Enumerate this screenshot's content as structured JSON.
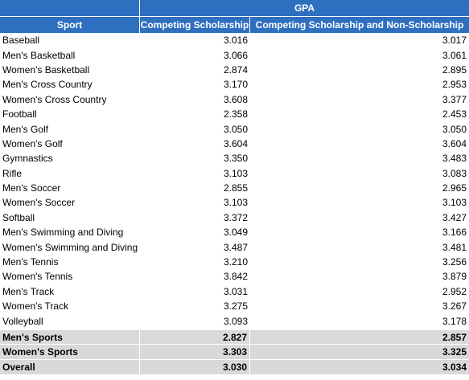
{
  "header": {
    "group_label": "GPA",
    "sport_label": "Sport",
    "competing_label": "Competing Scholarship",
    "combined_label": "Competing Scholarship and Non-Scholarship"
  },
  "rows": [
    {
      "sport": "Baseball",
      "competing": "3.016",
      "combined": "3.017"
    },
    {
      "sport": "Men's Basketball",
      "competing": "3.066",
      "combined": "3.061"
    },
    {
      "sport": "Women's Basketball",
      "competing": "2.874",
      "combined": "2.895"
    },
    {
      "sport": "Men's Cross Country",
      "competing": "3.170",
      "combined": "2.953"
    },
    {
      "sport": "Women's Cross Country",
      "competing": "3.608",
      "combined": "3.377"
    },
    {
      "sport": "Football",
      "competing": "2.358",
      "combined": "2.453"
    },
    {
      "sport": "Men's Golf",
      "competing": "3.050",
      "combined": "3.050"
    },
    {
      "sport": "Women's Golf",
      "competing": "3.604",
      "combined": "3.604"
    },
    {
      "sport": "Gymnastics",
      "competing": "3.350",
      "combined": "3.483"
    },
    {
      "sport": "Rifle",
      "competing": "3.103",
      "combined": "3.083"
    },
    {
      "sport": "Men's Soccer",
      "competing": "2.855",
      "combined": "2.965"
    },
    {
      "sport": "Women's Soccer",
      "competing": "3.103",
      "combined": "3.103"
    },
    {
      "sport": "Softball",
      "competing": "3.372",
      "combined": "3.427"
    },
    {
      "sport": "Men's Swimming and Diving",
      "competing": "3.049",
      "combined": "3.166"
    },
    {
      "sport": "Women's Swimming and Diving",
      "competing": "3.487",
      "combined": "3.481"
    },
    {
      "sport": "Men's Tennis",
      "competing": "3.210",
      "combined": "3.256"
    },
    {
      "sport": "Women's Tennis",
      "competing": "3.842",
      "combined": "3.879"
    },
    {
      "sport": "Men's Track",
      "competing": "3.031",
      "combined": "2.952"
    },
    {
      "sport": "Women's Track",
      "competing": "3.275",
      "combined": "3.267"
    },
    {
      "sport": "Volleyball",
      "competing": "3.093",
      "combined": "3.178"
    }
  ],
  "summary": [
    {
      "sport": "Men's Sports",
      "competing": "2.827",
      "combined": "2.857"
    },
    {
      "sport": "Women's Sports",
      "competing": "3.303",
      "combined": "3.325"
    },
    {
      "sport": "Overall",
      "competing": "3.030",
      "combined": "3.034"
    }
  ],
  "colors": {
    "header_bg": "#2e6fc0",
    "header_text": "#ffffff",
    "summary_bg": "#d9d9d9"
  }
}
